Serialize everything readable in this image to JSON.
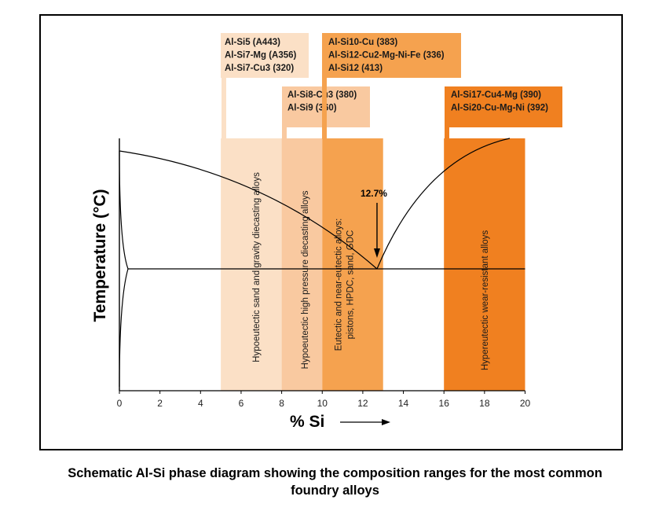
{
  "chart_data": {
    "type": "phase-diagram",
    "xlabel": "% Si",
    "ylabel": "Temperature (°C)",
    "xlim": [
      0,
      20
    ],
    "x_ticks": [
      "0",
      "2",
      "4",
      "6",
      "8",
      "10",
      "12",
      "14",
      "16",
      "18",
      "20"
    ],
    "eutectic": {
      "x": 12.7,
      "label": "12.7%"
    },
    "bands": [
      {
        "x_range": [
          5,
          8
        ],
        "color": "#fbe0c6",
        "label": "Hypoeutectic sand and gravity diecasting alloys"
      },
      {
        "x_range": [
          8,
          10
        ],
        "color": "#f9c9a0",
        "label": "Hypoeutectic high pressure diecasting alloys"
      },
      {
        "x_range": [
          10,
          13
        ],
        "color": "#f5a24f",
        "label": "Eutectic and near-eutectic alloys:\npistons, HPDC, sand, GDC"
      },
      {
        "x_range": [
          16,
          20
        ],
        "color": "#f08020",
        "label": "Hypereutectic wear-resistant alloys"
      }
    ],
    "alloy_boxes": [
      {
        "color": "#fbe0c6",
        "lines": [
          "Al-Si5 (A443)",
          "Al-Si7-Mg (A356)",
          "Al-Si7-Cu3 (320)"
        ]
      },
      {
        "color": "#f9c9a0",
        "lines": [
          "Al-Si8-Cu3 (380)",
          "Al-Si9 (360)"
        ]
      },
      {
        "color": "#f5a24f",
        "lines": [
          "Al-Si10-Cu (383)",
          "Al-Si12-Cu2-Mg-Ni-Fe (336)",
          "Al-Si12 (413)"
        ]
      },
      {
        "color": "#f08020",
        "lines": [
          "Al-Si17-Cu4-Mg (390)",
          "Al-Si20-Cu-Mg-Ni (392)"
        ]
      }
    ]
  },
  "caption": {
    "line1": "Schematic Al-Si phase diagram showing the composition ranges for the most common",
    "line2": "foundry alloys"
  }
}
